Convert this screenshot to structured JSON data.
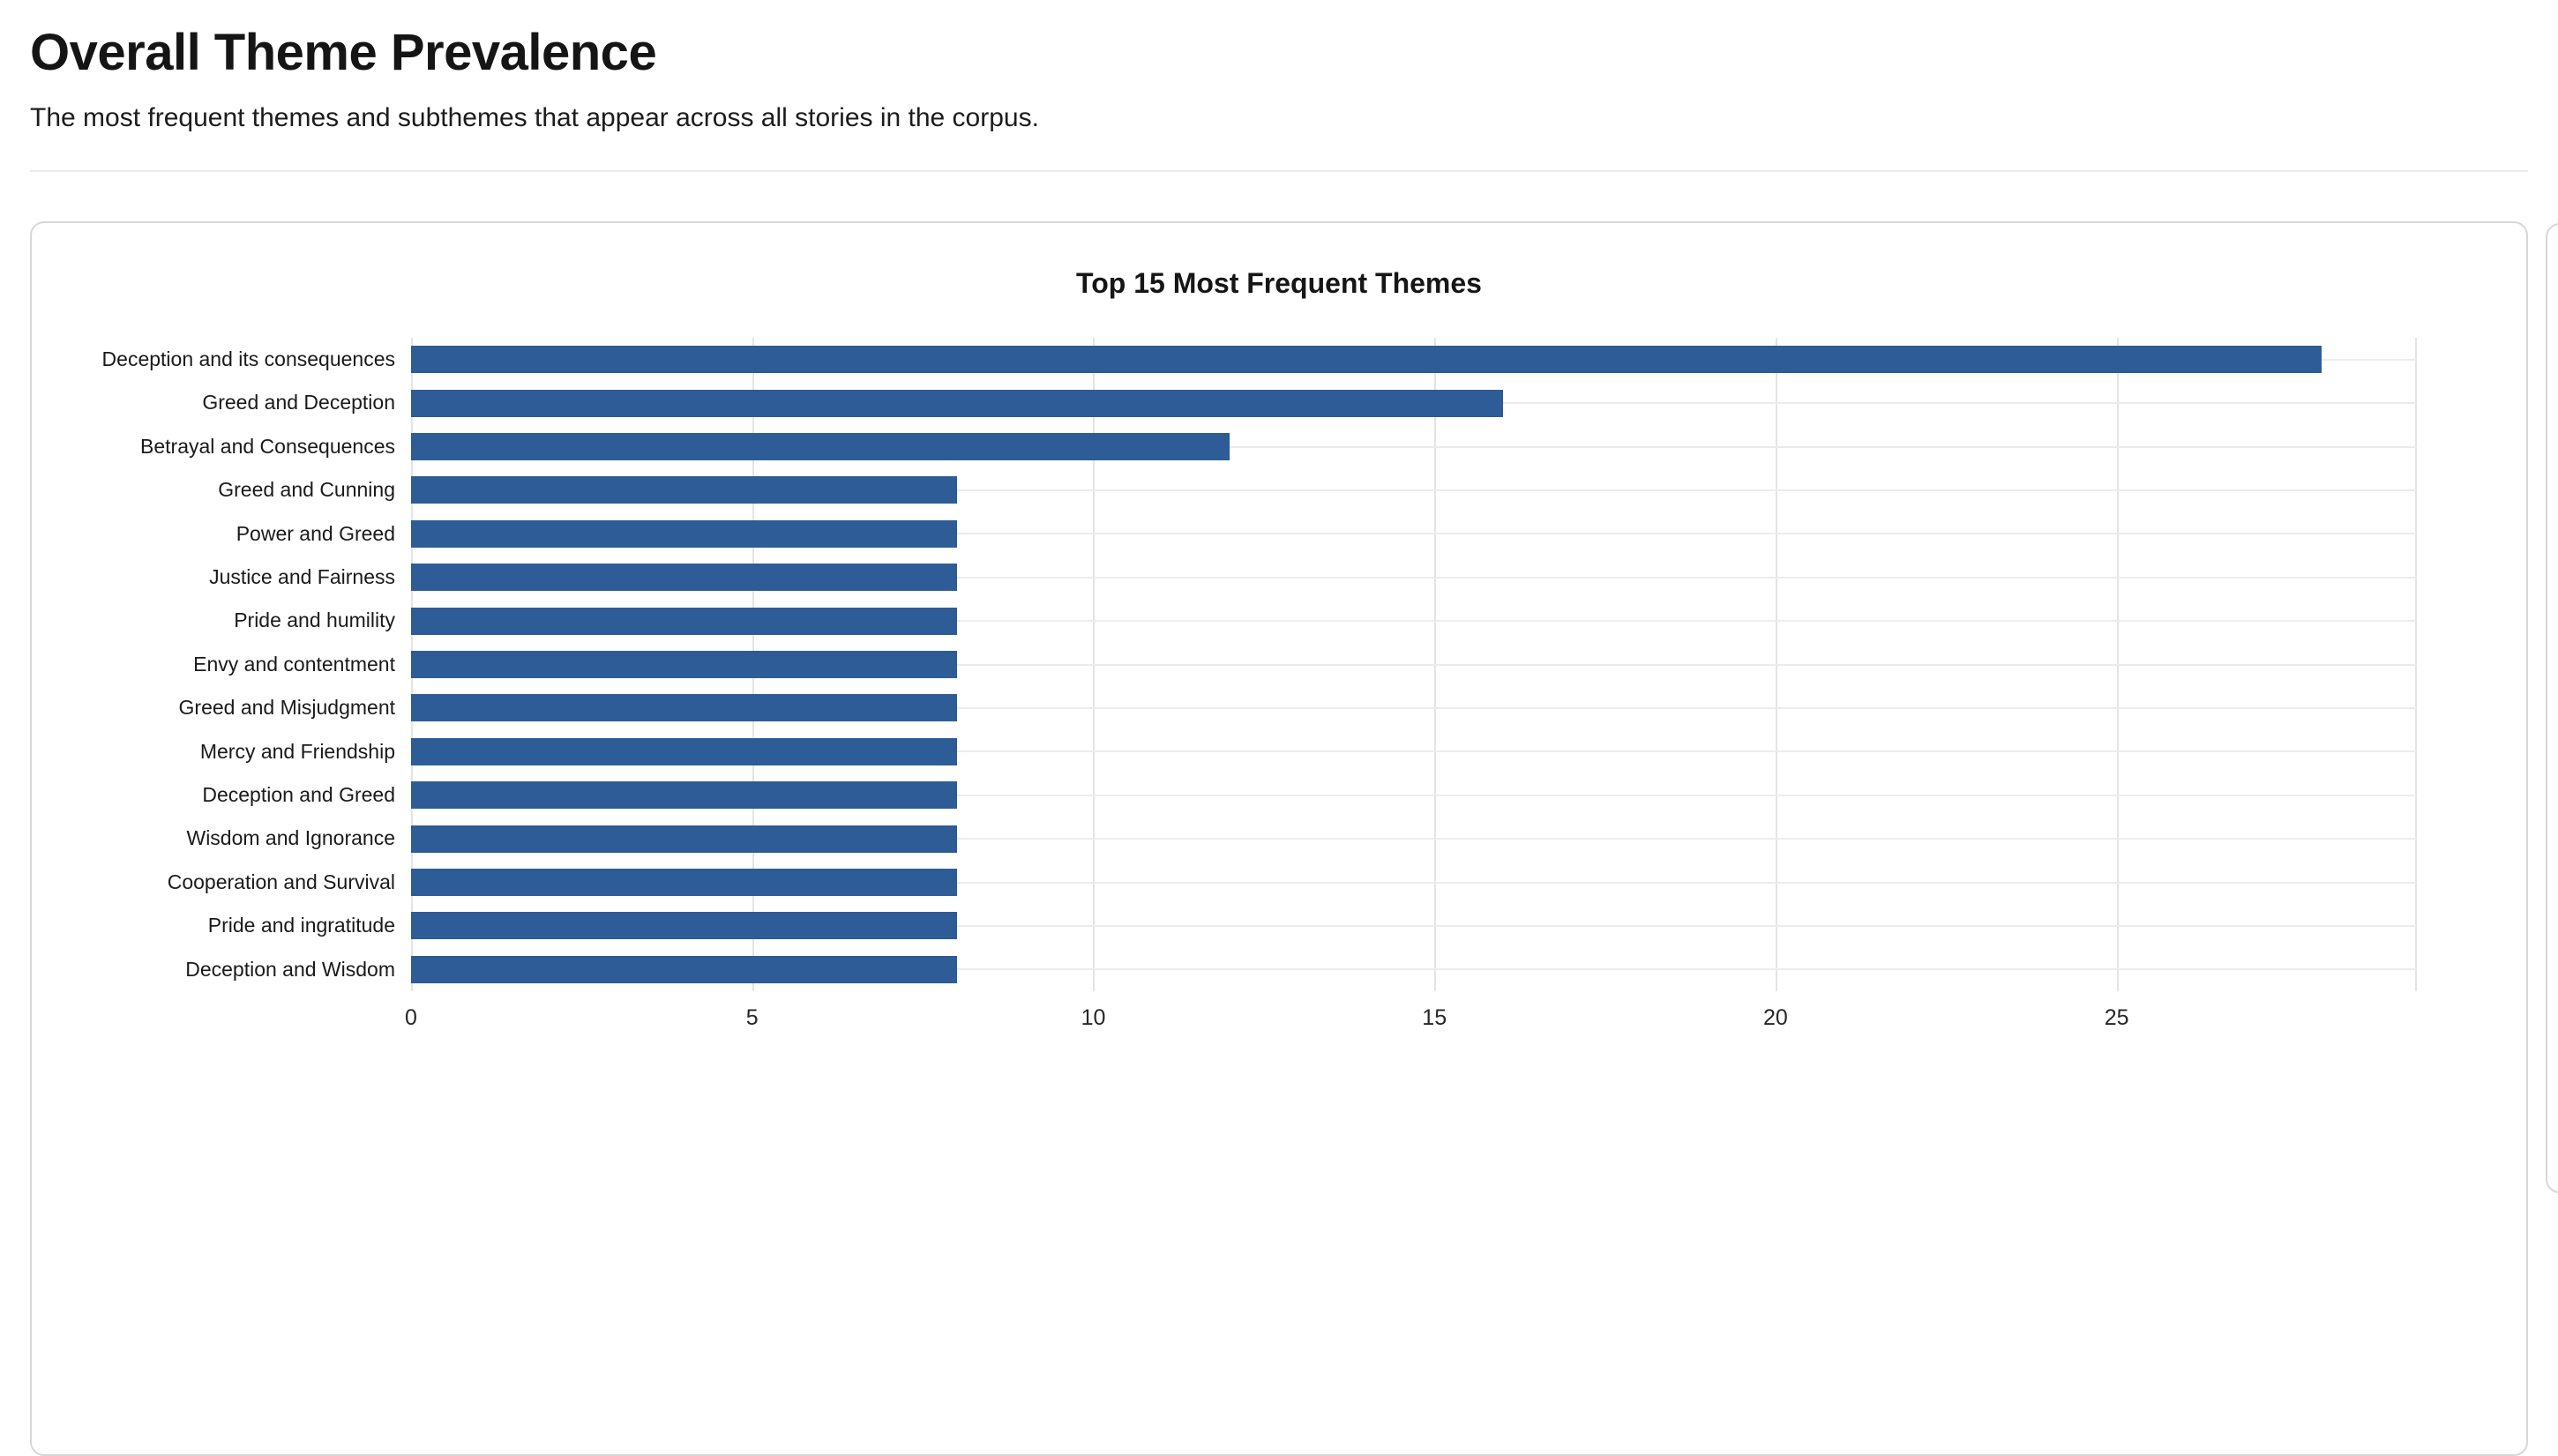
{
  "page": {
    "title": "Overall Theme Prevalence",
    "subtitle": "The most frequent themes and subthemes that appear across all stories in the corpus."
  },
  "chart_data": {
    "type": "bar",
    "orientation": "horizontal",
    "title": "Top 15 Most Frequent Themes",
    "categories": [
      "Deception and its consequences",
      "Greed and Deception",
      "Betrayal and Consequences",
      "Greed and Cunning",
      "Power and Greed",
      "Justice and Fairness",
      "Pride and humility",
      "Envy and contentment",
      "Greed and Misjudgment",
      "Mercy and Friendship",
      "Deception and Greed",
      "Wisdom and Ignorance",
      "Cooperation and Survival",
      "Pride and ingratitude",
      "Deception and Wisdom"
    ],
    "values": [
      28,
      16,
      12,
      8,
      8,
      8,
      8,
      8,
      8,
      8,
      8,
      8,
      8,
      8,
      8
    ],
    "xticks": [
      0,
      5,
      10,
      15,
      20,
      25
    ],
    "xlim": [
      0,
      29.4
    ],
    "xlabel": "",
    "ylabel": "",
    "grid": true,
    "legend": false,
    "bar_color": "#2d5c97"
  }
}
